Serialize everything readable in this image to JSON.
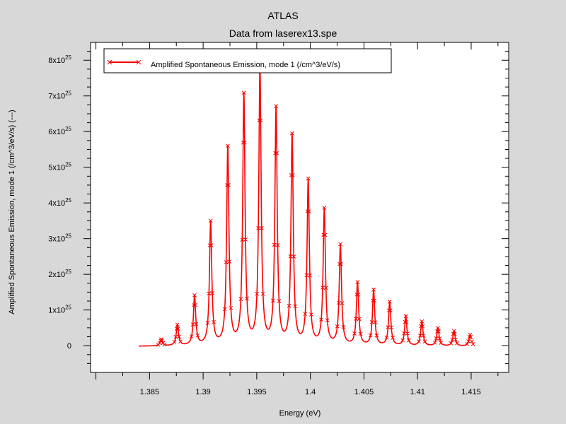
{
  "chart_data": {
    "type": "line",
    "title": "ATLAS",
    "subtitle": "Data from laserex13.spe",
    "xlabel": "Energy (eV)",
    "ylabel": "Amplified Spontaneous Emission, mode 1 (/cm^3/eV/s) (---)",
    "xlim": [
      1.3795,
      1.4185
    ],
    "ylim": [
      -7.5e+24,
      8.5e+25
    ],
    "grid": false,
    "legend_position": "top-left",
    "line_color": "#ff0000",
    "x_ticks": [
      {
        "value": 1.385,
        "label": "1.385"
      },
      {
        "value": 1.39,
        "label": "1.39"
      },
      {
        "value": 1.395,
        "label": "1.395"
      },
      {
        "value": 1.4,
        "label": "1.4"
      },
      {
        "value": 1.405,
        "label": "1.405"
      },
      {
        "value": 1.41,
        "label": "1.41"
      },
      {
        "value": 1.415,
        "label": "1.415"
      }
    ],
    "y_ticks": [
      {
        "value": 0,
        "mant": "0",
        "exp": ""
      },
      {
        "value": 1e+25,
        "mant": "1x10",
        "exp": "25"
      },
      {
        "value": 2e+25,
        "mant": "2x10",
        "exp": "25"
      },
      {
        "value": 3e+25,
        "mant": "3x10",
        "exp": "25"
      },
      {
        "value": 4e+25,
        "mant": "4x10",
        "exp": "25"
      },
      {
        "value": 5e+25,
        "mant": "5x10",
        "exp": "25"
      },
      {
        "value": 6e+25,
        "mant": "6x10",
        "exp": "25"
      },
      {
        "value": 7e+25,
        "mant": "7x10",
        "exp": "25"
      },
      {
        "value": 8e+25,
        "mant": "8x10",
        "exp": "25"
      }
    ],
    "x_range": [
      1.384,
      1.415
    ],
    "baseline": -2e+23,
    "series": [
      {
        "name": "Amplified Spontaneous Emission, mode 1 (/cm^3/eV/s)",
        "peaks": [
          {
            "x": 1.3861,
            "y": 1.8e+24
          },
          {
            "x": 1.3876,
            "y": 5.8e+24
          },
          {
            "x": 1.3892,
            "y": 1.38e+25
          },
          {
            "x": 1.3907,
            "y": 3.45e+25
          },
          {
            "x": 1.3923,
            "y": 5.52e+25
          },
          {
            "x": 1.3938,
            "y": 6.98e+25
          },
          {
            "x": 1.3953,
            "y": 7.75e+25
          },
          {
            "x": 1.3968,
            "y": 6.6e+25
          },
          {
            "x": 1.3983,
            "y": 5.85e+25
          },
          {
            "x": 1.3998,
            "y": 4.6e+25
          },
          {
            "x": 1.4013,
            "y": 3.8e+25
          },
          {
            "x": 1.4028,
            "y": 2.8e+25
          },
          {
            "x": 1.4044,
            "y": 1.75e+25
          },
          {
            "x": 1.4059,
            "y": 1.55e+25
          },
          {
            "x": 1.4074,
            "y": 1.22e+25
          },
          {
            "x": 1.4089,
            "y": 8.2e+24
          },
          {
            "x": 1.4104,
            "y": 6.8e+24
          },
          {
            "x": 1.4119,
            "y": 5e+24
          },
          {
            "x": 1.4134,
            "y": 4.2e+24
          },
          {
            "x": 1.4149,
            "y": 3.2e+24
          }
        ]
      }
    ]
  }
}
